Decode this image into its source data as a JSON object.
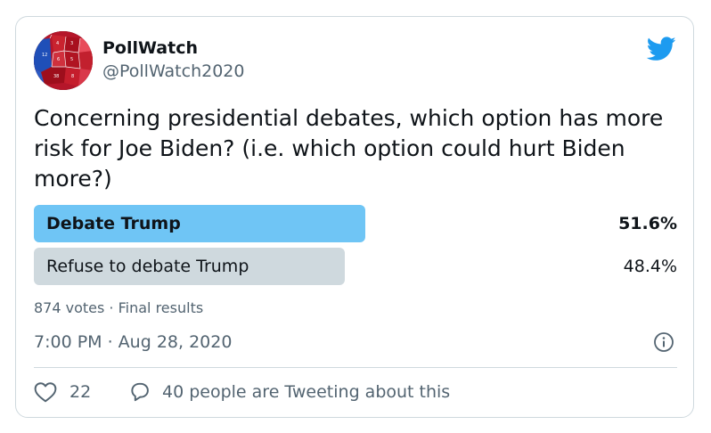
{
  "tweet": {
    "author": {
      "display_name": "PollWatch",
      "handle": "@PollWatch2020",
      "avatar_icon": "electoral-map-avatar"
    },
    "brand_icon": "twitter-bird-icon",
    "text": "Concerning presidential debates, which option has more risk for Joe Biden? (i.e. which option could hurt Biden more?)",
    "poll": {
      "options": [
        {
          "label": "Debate Trump",
          "percent_text": "51.6%",
          "percent": 51.6,
          "winner": true
        },
        {
          "label": "Refuse to debate Trump",
          "percent_text": "48.4%",
          "percent": 48.4,
          "winner": false
        }
      ],
      "votes": "874 votes",
      "separator": " · ",
      "status": "Final results"
    },
    "timestamp": "7:00 PM · Aug 28, 2020",
    "likes": "22",
    "reply_text": "40 people are Tweeting about this",
    "colors": {
      "winner_bar": "#6fc5f5",
      "other_bar": "#cfd9de",
      "twitter_blue": "#1d9bf0",
      "secondary_text": "#536471",
      "border": "#cfd9de"
    }
  }
}
